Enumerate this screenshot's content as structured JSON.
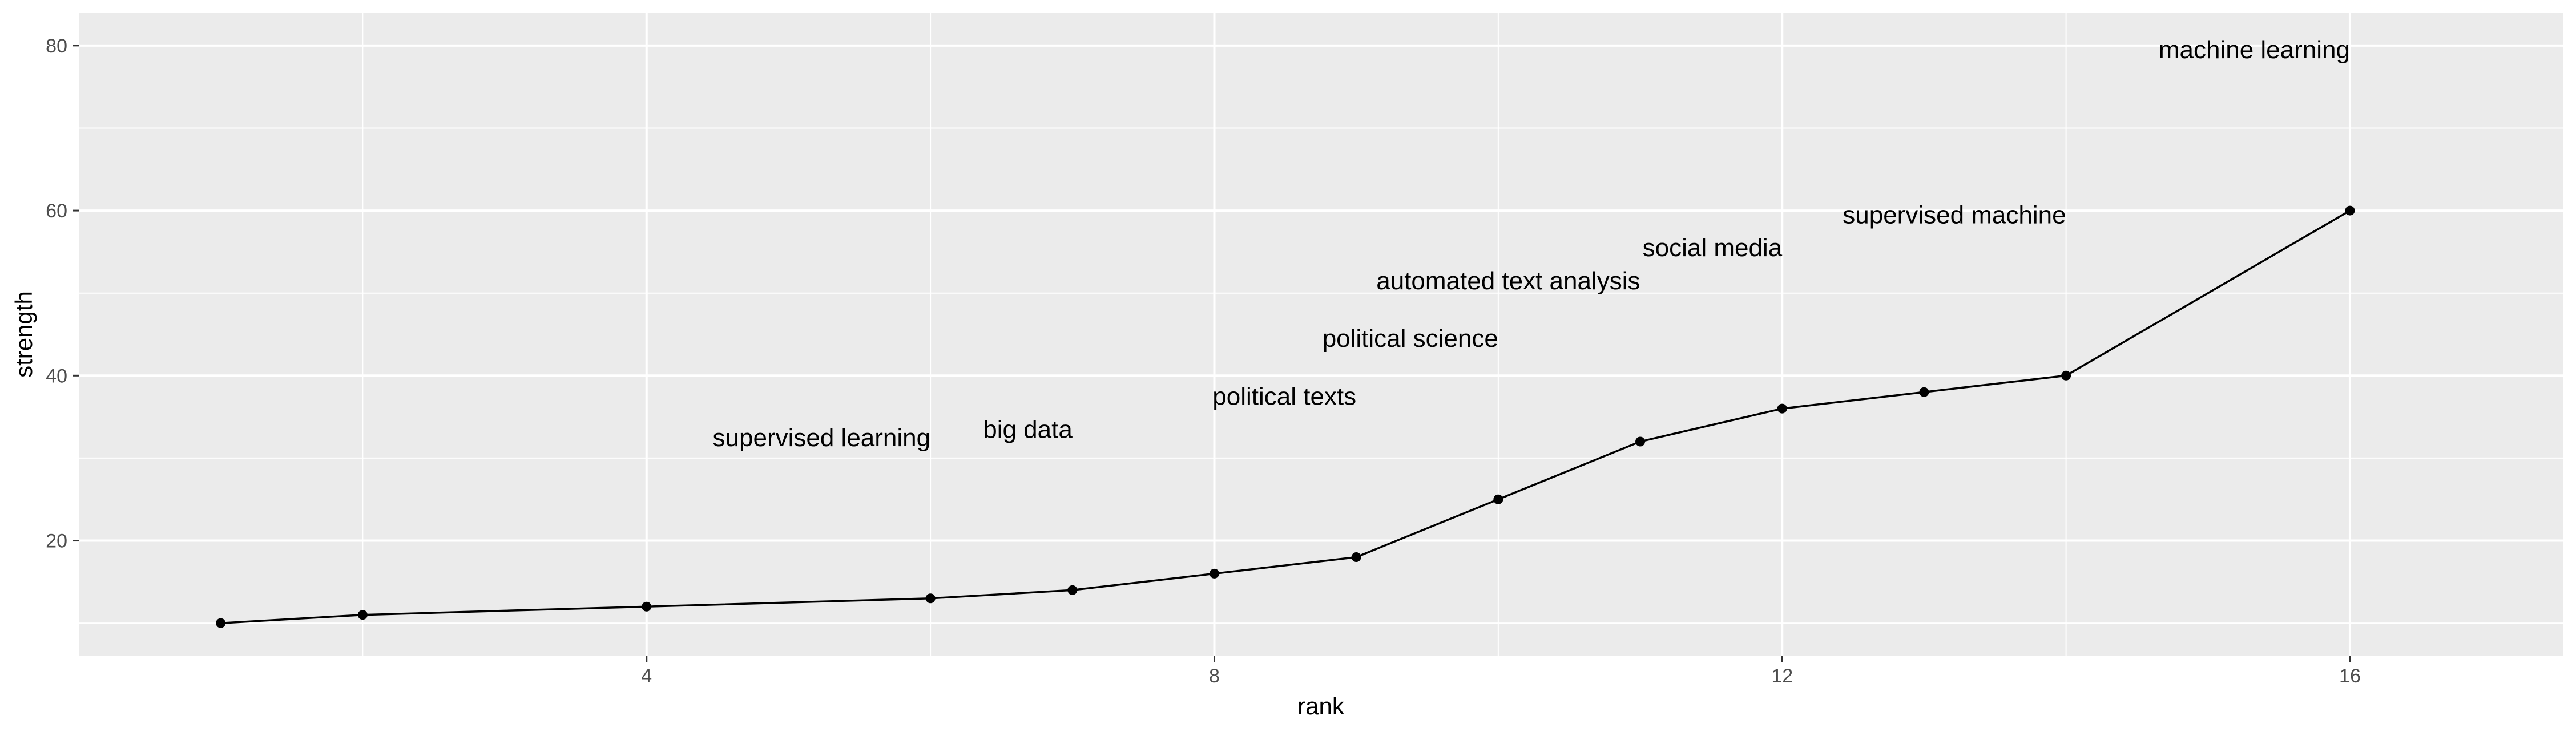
{
  "chart_data": {
    "type": "line",
    "xlabel": "rank",
    "ylabel": "strength",
    "xlim": [
      0.0,
      17.5
    ],
    "ylim": [
      6.0,
      84.0
    ],
    "x_major_ticks": [
      4,
      8,
      12,
      16
    ],
    "x_minor_ticks": [
      2,
      6,
      10,
      14
    ],
    "y_major_ticks": [
      20,
      40,
      60,
      80
    ],
    "y_minor_ticks": [
      10,
      30,
      50,
      70
    ],
    "x_tick_labels": [
      "4",
      "8",
      "12",
      "16"
    ],
    "y_tick_labels": [
      "20",
      "40",
      "60",
      "80"
    ],
    "grid": true,
    "background": "#ebebeb",
    "grid_color": "#ffffff",
    "line_color": "#000000",
    "series": [
      {
        "x": [
          1,
          2,
          4,
          6,
          7,
          8,
          9,
          10,
          11,
          12,
          13,
          14,
          16
        ],
        "y": [
          10,
          11,
          12,
          13,
          14,
          16,
          18,
          25,
          32,
          36,
          38,
          40,
          60
        ]
      }
    ],
    "annotations": [
      {
        "text": "supervised learning",
        "x": 6,
        "y": 32.5
      },
      {
        "text": "big data",
        "x": 7,
        "y": 33.5
      },
      {
        "text": "political texts",
        "x": 9,
        "y": 37.5
      },
      {
        "text": "political science",
        "x": 10,
        "y": 44.5
      },
      {
        "text": "automated text analysis",
        "x": 11,
        "y": 51.5
      },
      {
        "text": "social media",
        "x": 12,
        "y": 55.5
      },
      {
        "text": "supervised machine",
        "x": 14,
        "y": 59.5
      },
      {
        "text": "machine learning",
        "x": 16,
        "y": 79.5
      }
    ]
  }
}
